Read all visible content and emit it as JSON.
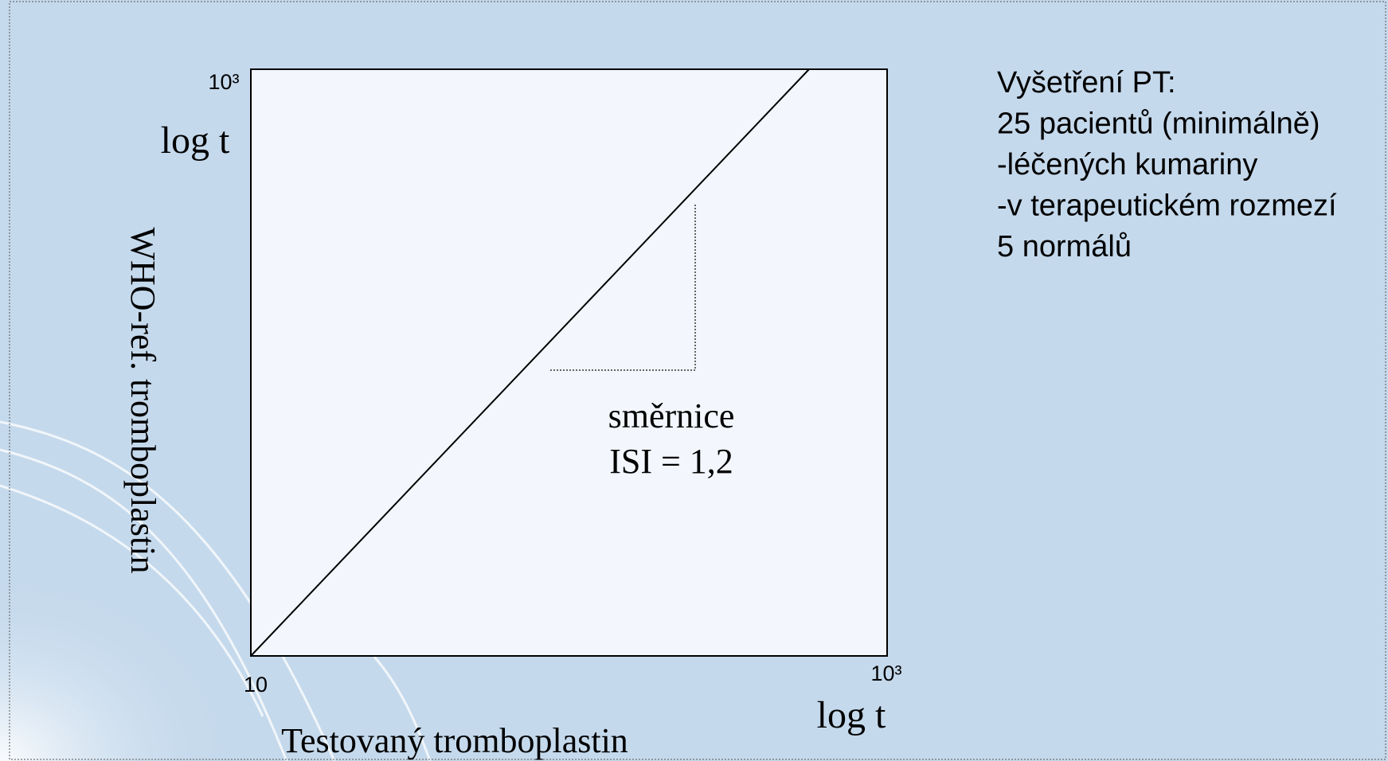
{
  "axes": {
    "y_top": "10³",
    "y_label": "log t",
    "y_title": "WHO-ref. tromboplastin",
    "origin": "10",
    "x_right": "10³",
    "x_label": "log t",
    "x_title": "Testovaný tromboplastin"
  },
  "annotation": {
    "lines": [
      "směrnice",
      "ISI = 1,2"
    ]
  },
  "notes": {
    "lines": [
      "Vyšetření PT:",
      "25 pacientů (minimálně)",
      "-léčených kumariny",
      "-v terapeutickém rozmezí",
      "5 normálů"
    ]
  }
}
